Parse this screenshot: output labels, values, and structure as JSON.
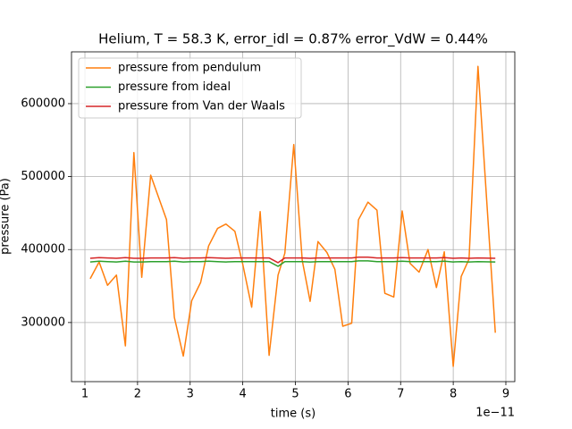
{
  "chart_data": {
    "type": "line",
    "title": "Helium, T = 58.3 K, error_idl = 0.87% error_VdW = 0.44%",
    "xlabel": "time (s)",
    "ylabel": "pressure (Pa)",
    "x_offset_label": "1e−11",
    "x": [
      1.1,
      1.27,
      1.43,
      1.6,
      1.77,
      1.93,
      2.08,
      2.25,
      2.55,
      2.7,
      2.87,
      3.03,
      3.2,
      3.35,
      3.52,
      3.68,
      3.85,
      4.0,
      4.17,
      4.33,
      4.5,
      4.67,
      4.8,
      4.97,
      5.13,
      5.28,
      5.43,
      5.6,
      5.75,
      5.9,
      6.07,
      6.2,
      6.38,
      6.55,
      6.7,
      6.87,
      7.03,
      7.18,
      7.35,
      7.52,
      7.68,
      7.83,
      8.0,
      8.15,
      8.3,
      8.47,
      8.8
    ],
    "series": [
      {
        "name": "pressure from pendulum",
        "color": "#ff7f0e",
        "values": [
          360000,
          383000,
          351000,
          365000,
          268000,
          533000,
          362000,
          502000,
          441000,
          307000,
          254000,
          330000,
          355000,
          405000,
          429000,
          435000,
          425000,
          380000,
          321000,
          452000,
          255000,
          365000,
          395000,
          544000,
          385000,
          329000,
          411000,
          396000,
          373000,
          295000,
          299000,
          441000,
          465000,
          454000,
          340000,
          335000,
          453000,
          381000,
          369000,
          400000,
          348000,
          397000,
          240000,
          363000,
          387000,
          651000,
          286000
        ]
      },
      {
        "name": "pressure from ideal",
        "color": "#2ca02c",
        "values": [
          383000,
          384000,
          383500,
          383000,
          384000,
          383000,
          383000,
          383500,
          383500,
          384000,
          383000,
          383500,
          383500,
          384000,
          383500,
          383000,
          383500,
          383500,
          383500,
          383500,
          383500,
          377000,
          383500,
          383500,
          383500,
          383000,
          383500,
          383500,
          383500,
          383500,
          383500,
          384500,
          384500,
          383500,
          383500,
          383500,
          384000,
          383500,
          383500,
          383500,
          383500,
          384000,
          383000,
          383500,
          383000,
          383500,
          383000
        ]
      },
      {
        "name": "pressure from Van der Waals",
        "color": "#d62728",
        "values": [
          388000,
          389000,
          388500,
          388000,
          389000,
          388000,
          388000,
          388500,
          388500,
          389000,
          388000,
          388500,
          388500,
          389000,
          388500,
          388000,
          388500,
          388500,
          388500,
          388500,
          388500,
          382000,
          388500,
          388500,
          388500,
          388000,
          388500,
          388500,
          388500,
          388500,
          388500,
          389500,
          389500,
          388500,
          388500,
          388500,
          389000,
          388500,
          388500,
          388500,
          388500,
          389000,
          388000,
          388500,
          388000,
          388500,
          388000
        ]
      }
    ],
    "xlim": [
      0.745,
      9.17
    ],
    "xticks": [
      1,
      2,
      3,
      4,
      5,
      6,
      7,
      8,
      9
    ],
    "ylim": [
      219000,
      671000
    ],
    "yticks": [
      300000,
      400000,
      500000,
      600000
    ],
    "grid": true,
    "legend": "upper left"
  }
}
